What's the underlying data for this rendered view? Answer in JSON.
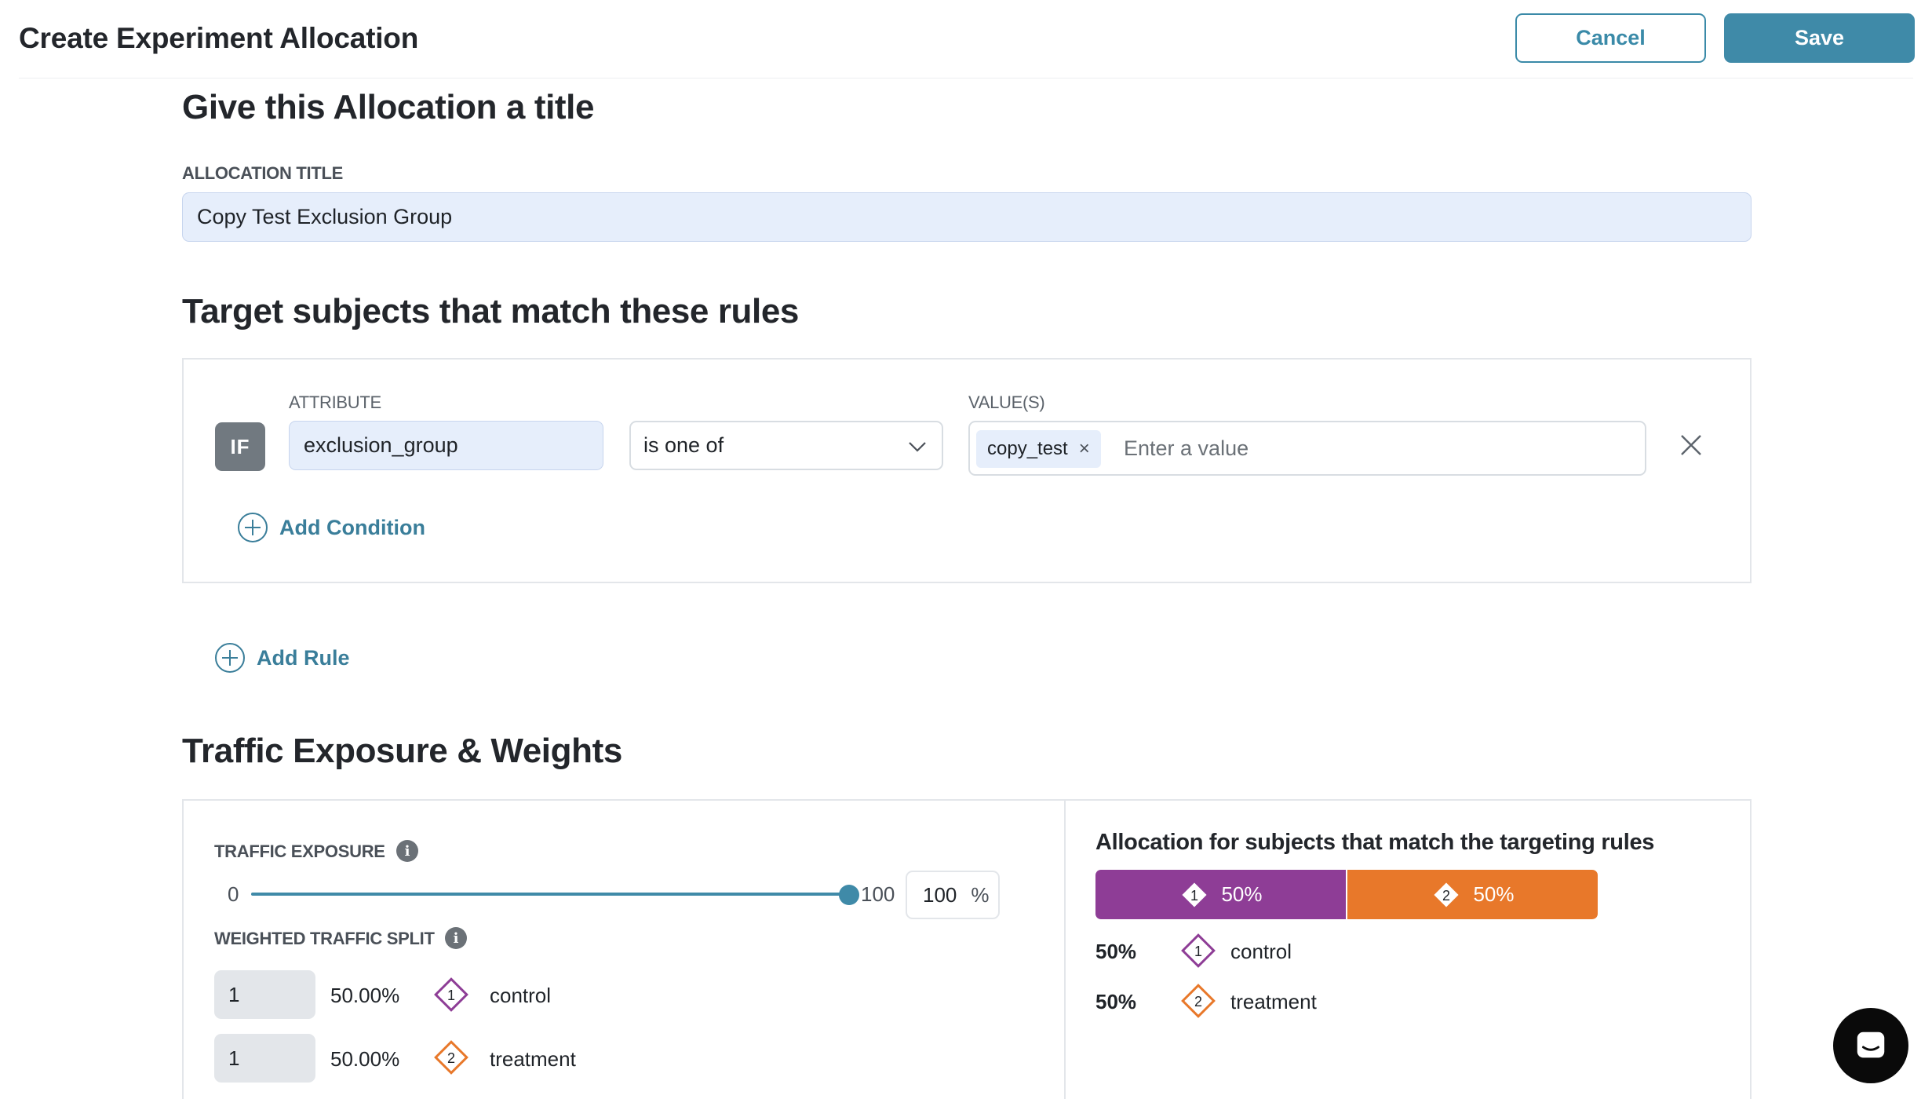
{
  "header": {
    "title": "Create Experiment Allocation",
    "cancel_label": "Cancel",
    "save_label": "Save"
  },
  "title_section": {
    "heading": "Give this Allocation a title",
    "field_label": "ALLOCATION TITLE",
    "value": "Copy Test Exclusion Group"
  },
  "targeting": {
    "heading": "Target subjects that match these rules",
    "rule": {
      "if_label": "IF",
      "attribute_label": "ATTRIBUTE",
      "attribute_value": "exclusion_group",
      "operator_value": "is one of",
      "values_label": "VALUE(S)",
      "chips": [
        "copy_test"
      ],
      "values_placeholder": "Enter a value"
    },
    "add_condition_label": "Add Condition",
    "add_rule_label": "Add Rule"
  },
  "traffic": {
    "heading": "Traffic Exposure & Weights",
    "exposure_label": "TRAFFIC EXPOSURE",
    "slider_min": "0",
    "slider_max": "100",
    "slider_value": 100,
    "exposure_value": "100",
    "exposure_unit": "%",
    "split_label": "WEIGHTED TRAFFIC SPLIT",
    "variants": [
      {
        "index": "1",
        "weight": "1",
        "percent": "50.00%",
        "name": "control",
        "color": "#8e3d96"
      },
      {
        "index": "2",
        "weight": "1",
        "percent": "50.00%",
        "name": "treatment",
        "color": "#e8782a"
      }
    ]
  },
  "allocation": {
    "title": "Allocation for subjects that match the targeting rules",
    "bars": [
      {
        "index": "1",
        "label": "50%",
        "share": 0.5,
        "color": "#8e3d96"
      },
      {
        "index": "2",
        "label": "50%",
        "share": 0.5,
        "color": "#e8782a"
      }
    ],
    "legend": [
      {
        "index": "1",
        "percent": "50%",
        "name": "control"
      },
      {
        "index": "2",
        "percent": "50%",
        "name": "treatment"
      }
    ]
  }
}
